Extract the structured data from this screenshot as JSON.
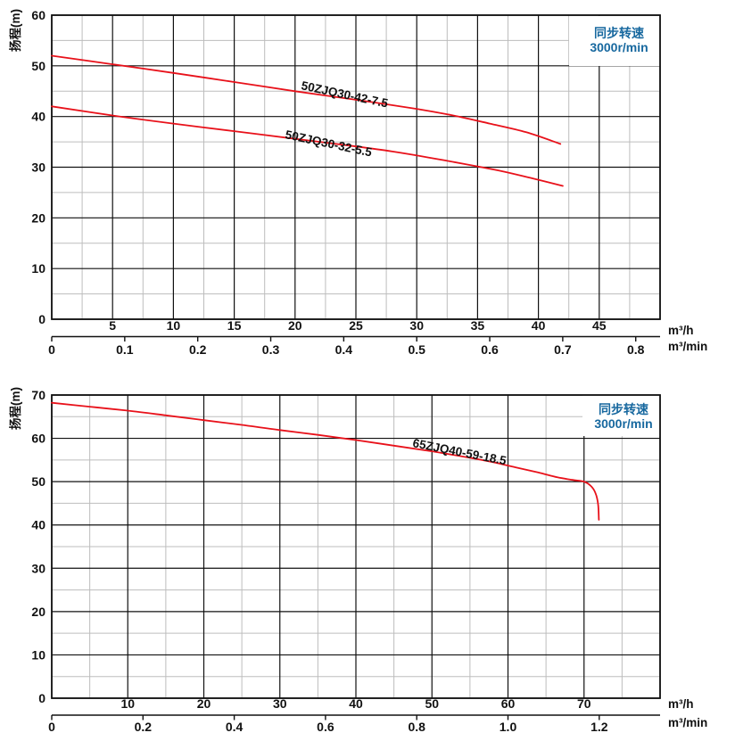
{
  "page": {
    "background": "#ffffff"
  },
  "colors": {
    "curve_red": "#e8111a",
    "grid_major": "#111111",
    "grid_minor": "#bdbdbd",
    "accent_blue": "#17689f",
    "text": "#111111",
    "plot_background": "#ffffff"
  },
  "chart_data": [
    {
      "type": "line",
      "ylabel": "扬程(m)",
      "x_unit_primary": "m³/h",
      "x_unit_secondary": "m³/min",
      "note": {
        "line1": "同步转速",
        "line2": "3000r/min"
      },
      "xlim": [
        0,
        50
      ],
      "ylim": [
        0,
        60
      ],
      "x_major_step": 5,
      "x_minor_step": 2.5,
      "y_major_step": 10,
      "y_minor_step": 5,
      "grid": true,
      "x_ticks": [
        "5",
        "10",
        "15",
        "20",
        "25",
        "30",
        "35",
        "40",
        "45"
      ],
      "y_ticks": [
        "0",
        "10",
        "20",
        "30",
        "40",
        "50",
        "60"
      ],
      "x2_ticks": [
        "0",
        "0.1",
        "0.2",
        "0.3",
        "0.4",
        "0.5",
        "0.6",
        "0.7",
        "0.8"
      ],
      "x2_per_primary": 60,
      "note_position": "top-right",
      "series": [
        {
          "name": "50ZJQ30-42-7.5",
          "points": [
            [
              0,
              52
            ],
            [
              5,
              50.3
            ],
            [
              10,
              48.6
            ],
            [
              15,
              46.8
            ],
            [
              20,
              45.0
            ],
            [
              25,
              43.3
            ],
            [
              30,
              41.5
            ],
            [
              33,
              40.2
            ],
            [
              36,
              38.6
            ],
            [
              39,
              36.9
            ],
            [
              41.8,
              34.6
            ]
          ]
        },
        {
          "name": "50ZJQ30-32-5.5",
          "points": [
            [
              0,
              42
            ],
            [
              5,
              40.2
            ],
            [
              10,
              38.6
            ],
            [
              15,
              37.1
            ],
            [
              20,
              35.6
            ],
            [
              25,
              34.1
            ],
            [
              28,
              33.1
            ],
            [
              31,
              31.9
            ],
            [
              34,
              30.6
            ],
            [
              37,
              29.2
            ],
            [
              39.5,
              27.8
            ],
            [
              42,
              26.3
            ]
          ]
        }
      ]
    },
    {
      "type": "line",
      "ylabel": "扬程(m)",
      "x_unit_primary": "m³/h",
      "x_unit_secondary": "m³/min",
      "note": {
        "line1": "同步转速",
        "line2": "3000r/min"
      },
      "xlim": [
        0,
        80
      ],
      "ylim": [
        0,
        70
      ],
      "x_major_step": 10,
      "x_minor_step": 5,
      "y_major_step": 10,
      "y_minor_step": 5,
      "grid": true,
      "x_ticks": [
        "10",
        "20",
        "30",
        "40",
        "50",
        "60",
        "70"
      ],
      "y_ticks": [
        "0",
        "10",
        "20",
        "30",
        "40",
        "50",
        "60",
        "70"
      ],
      "x2_ticks": [
        "0",
        "0.2",
        "0.4",
        "0.6",
        "0.8",
        "1.0",
        "1.2"
      ],
      "x2_per_primary": 60,
      "note_position": "top-right",
      "series": [
        {
          "name": "65ZJQ40-59-18.5",
          "points": [
            [
              0,
              68.2
            ],
            [
              5,
              67.3
            ],
            [
              10,
              66.4
            ],
            [
              15,
              65.3
            ],
            [
              20,
              64.2
            ],
            [
              25,
              63.1
            ],
            [
              30,
              61.9
            ],
            [
              35,
              60.8
            ],
            [
              40,
              59.6
            ],
            [
              45,
              58.3
            ],
            [
              50,
              57.0
            ],
            [
              55,
              55.5
            ],
            [
              58,
              54.5
            ],
            [
              61,
              53.3
            ],
            [
              64,
              52.1
            ],
            [
              66.5,
              51.0
            ],
            [
              68.5,
              50.4
            ],
            [
              70,
              50.0
            ],
            [
              70.9,
              49.0
            ],
            [
              71.5,
              47.4
            ],
            [
              71.85,
              44.8
            ],
            [
              71.95,
              41.2
            ]
          ]
        }
      ]
    }
  ]
}
